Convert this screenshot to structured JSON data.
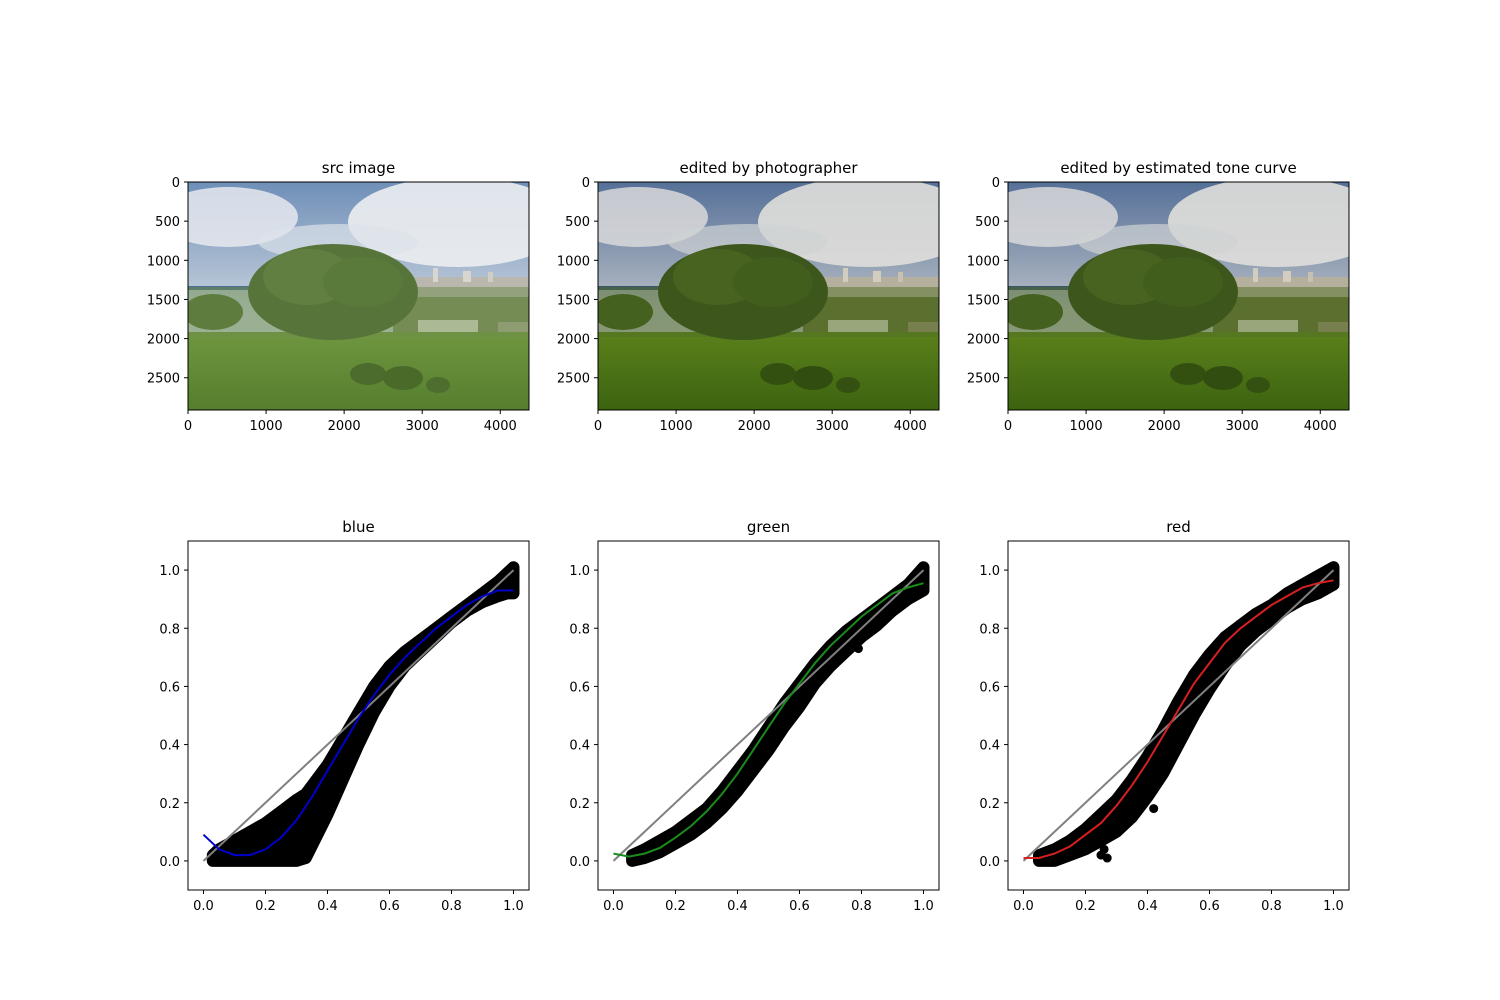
{
  "chart_data": [
    {
      "type": "image",
      "title": "src image",
      "xlim": [
        0,
        4368
      ],
      "ylim": [
        2912,
        0
      ],
      "xticks": [
        0,
        1000,
        2000,
        3000,
        4000
      ],
      "yticks": [
        0,
        500,
        1000,
        1500,
        2000,
        2500
      ],
      "xtick_labels": [
        "0",
        "1000",
        "2000",
        "3000",
        "4000"
      ],
      "ytick_labels": [
        "0",
        "500",
        "1000",
        "1500",
        "2000",
        "2500"
      ],
      "tone": "original"
    },
    {
      "type": "image",
      "title": "edited by photographer",
      "xlim": [
        0,
        4368
      ],
      "ylim": [
        2912,
        0
      ],
      "xticks": [
        0,
        1000,
        2000,
        3000,
        4000
      ],
      "yticks": [
        0,
        500,
        1000,
        1500,
        2000,
        2500
      ],
      "xtick_labels": [
        "0",
        "1000",
        "2000",
        "3000",
        "4000"
      ],
      "ytick_labels": [
        "0",
        "500",
        "1000",
        "1500",
        "2000",
        "2500"
      ],
      "tone": "edited"
    },
    {
      "type": "image",
      "title": "edited by estimated tone curve",
      "xlim": [
        0,
        4368
      ],
      "ylim": [
        2912,
        0
      ],
      "xticks": [
        0,
        1000,
        2000,
        3000,
        4000
      ],
      "yticks": [
        0,
        500,
        1000,
        1500,
        2000,
        2500
      ],
      "xtick_labels": [
        "0",
        "1000",
        "2000",
        "3000",
        "4000"
      ],
      "ytick_labels": [
        "0",
        "500",
        "1000",
        "1500",
        "2000",
        "2500"
      ],
      "tone": "edited"
    },
    {
      "type": "scatter",
      "title": "blue",
      "xlim": [
        -0.05,
        1.05
      ],
      "ylim": [
        -0.1,
        1.1
      ],
      "xticks": [
        0,
        0.2,
        0.4,
        0.6,
        0.8,
        1.0
      ],
      "yticks": [
        0,
        0.2,
        0.4,
        0.6,
        0.8,
        1.0
      ],
      "xtick_labels": [
        "0.0",
        "0.2",
        "0.4",
        "0.6",
        "0.8",
        "1.0"
      ],
      "ytick_labels": [
        "0.0",
        "0.2",
        "0.4",
        "0.6",
        "0.8",
        "1.0"
      ],
      "curve_color": "#0000cc",
      "identity": {
        "x": [
          0,
          1
        ],
        "y": [
          0,
          1
        ],
        "color": "#808080"
      },
      "scatter_band": {
        "x": [
          0.03,
          0.05,
          0.1,
          0.15,
          0.2,
          0.25,
          0.3,
          0.33,
          0.4,
          0.45,
          0.5,
          0.55,
          0.6,
          0.65,
          0.7,
          0.75,
          0.8,
          0.85,
          0.9,
          0.95,
          0.98,
          1.0
        ],
        "upper": [
          0.02,
          0.04,
          0.07,
          0.1,
          0.13,
          0.17,
          0.21,
          0.23,
          0.33,
          0.42,
          0.51,
          0.6,
          0.67,
          0.72,
          0.76,
          0.8,
          0.84,
          0.88,
          0.92,
          0.96,
          0.99,
          1.01
        ],
        "lower": [
          0.0,
          0.0,
          0.0,
          0.0,
          0.0,
          0.0,
          0.0,
          0.01,
          0.16,
          0.28,
          0.4,
          0.51,
          0.6,
          0.67,
          0.72,
          0.77,
          0.82,
          0.86,
          0.89,
          0.91,
          0.92,
          0.92
        ]
      },
      "fit_curve": {
        "x": [
          0.0,
          0.05,
          0.1,
          0.15,
          0.2,
          0.25,
          0.3,
          0.35,
          0.4,
          0.45,
          0.5,
          0.55,
          0.6,
          0.65,
          0.7,
          0.75,
          0.8,
          0.85,
          0.9,
          0.95,
          1.0
        ],
        "y": [
          0.09,
          0.04,
          0.02,
          0.02,
          0.04,
          0.08,
          0.14,
          0.22,
          0.31,
          0.4,
          0.49,
          0.57,
          0.64,
          0.7,
          0.75,
          0.8,
          0.84,
          0.88,
          0.91,
          0.93,
          0.93
        ]
      },
      "outliers": {
        "x": [],
        "y": []
      }
    },
    {
      "type": "scatter",
      "title": "green",
      "xlim": [
        -0.05,
        1.05
      ],
      "ylim": [
        -0.1,
        1.1
      ],
      "xticks": [
        0,
        0.2,
        0.4,
        0.6,
        0.8,
        1.0
      ],
      "yticks": [
        0,
        0.2,
        0.4,
        0.6,
        0.8,
        1.0
      ],
      "xtick_labels": [
        "0.0",
        "0.2",
        "0.4",
        "0.6",
        "0.8",
        "1.0"
      ],
      "ytick_labels": [
        "0.0",
        "0.2",
        "0.4",
        "0.6",
        "0.8",
        "1.0"
      ],
      "curve_color": "#1a8c1a",
      "identity": {
        "x": [
          0,
          1
        ],
        "y": [
          0,
          1
        ],
        "color": "#808080"
      },
      "scatter_band": {
        "x": [
          0.06,
          0.1,
          0.15,
          0.2,
          0.25,
          0.3,
          0.35,
          0.4,
          0.45,
          0.5,
          0.55,
          0.6,
          0.65,
          0.7,
          0.75,
          0.8,
          0.85,
          0.9,
          0.95,
          1.0
        ],
        "upper": [
          0.02,
          0.04,
          0.07,
          0.1,
          0.14,
          0.18,
          0.24,
          0.31,
          0.38,
          0.46,
          0.54,
          0.61,
          0.68,
          0.74,
          0.79,
          0.83,
          0.87,
          0.91,
          0.95,
          1.01
        ],
        "lower": [
          0.0,
          0.01,
          0.03,
          0.06,
          0.09,
          0.13,
          0.18,
          0.24,
          0.31,
          0.38,
          0.46,
          0.53,
          0.61,
          0.67,
          0.72,
          0.77,
          0.81,
          0.86,
          0.9,
          0.93
        ]
      },
      "fit_curve": {
        "x": [
          0.0,
          0.05,
          0.1,
          0.15,
          0.2,
          0.25,
          0.3,
          0.35,
          0.4,
          0.45,
          0.5,
          0.55,
          0.6,
          0.65,
          0.7,
          0.75,
          0.8,
          0.85,
          0.9,
          0.95,
          1.0
        ],
        "y": [
          0.025,
          0.015,
          0.025,
          0.045,
          0.08,
          0.12,
          0.17,
          0.23,
          0.3,
          0.38,
          0.46,
          0.54,
          0.61,
          0.68,
          0.74,
          0.79,
          0.84,
          0.88,
          0.92,
          0.94,
          0.955
        ]
      },
      "outliers": {
        "x": [
          0.79
        ],
        "y": [
          0.73
        ]
      }
    },
    {
      "type": "scatter",
      "title": "red",
      "xlim": [
        -0.05,
        1.05
      ],
      "ylim": [
        -0.1,
        1.1
      ],
      "xticks": [
        0,
        0.2,
        0.4,
        0.6,
        0.8,
        1.0
      ],
      "yticks": [
        0,
        0.2,
        0.4,
        0.6,
        0.8,
        1.0
      ],
      "xtick_labels": [
        "0.0",
        "0.2",
        "0.4",
        "0.6",
        "0.8",
        "1.0"
      ],
      "ytick_labels": [
        "0.0",
        "0.2",
        "0.4",
        "0.6",
        "0.8",
        "1.0"
      ],
      "curve_color": "#d62020",
      "identity": {
        "x": [
          0,
          1
        ],
        "y": [
          0,
          1
        ],
        "color": "#808080"
      },
      "scatter_band": {
        "x": [
          0.05,
          0.1,
          0.15,
          0.2,
          0.25,
          0.3,
          0.35,
          0.4,
          0.45,
          0.5,
          0.55,
          0.6,
          0.65,
          0.7,
          0.75,
          0.8,
          0.85,
          0.9,
          0.95,
          1.0
        ],
        "upper": [
          0.02,
          0.04,
          0.07,
          0.11,
          0.16,
          0.21,
          0.28,
          0.36,
          0.45,
          0.55,
          0.64,
          0.71,
          0.77,
          0.81,
          0.85,
          0.88,
          0.92,
          0.95,
          0.98,
          1.01
        ],
        "lower": [
          0.0,
          0.0,
          0.02,
          0.04,
          0.07,
          0.1,
          0.15,
          0.22,
          0.3,
          0.4,
          0.5,
          0.59,
          0.67,
          0.74,
          0.79,
          0.83,
          0.87,
          0.9,
          0.92,
          0.95
        ]
      },
      "fit_curve": {
        "x": [
          0.0,
          0.05,
          0.1,
          0.15,
          0.2,
          0.25,
          0.3,
          0.35,
          0.4,
          0.45,
          0.5,
          0.55,
          0.6,
          0.65,
          0.7,
          0.75,
          0.8,
          0.85,
          0.9,
          0.95,
          1.0
        ],
        "y": [
          0.01,
          0.01,
          0.025,
          0.05,
          0.09,
          0.13,
          0.19,
          0.26,
          0.34,
          0.43,
          0.52,
          0.61,
          0.68,
          0.75,
          0.8,
          0.84,
          0.88,
          0.91,
          0.94,
          0.955,
          0.965
        ]
      },
      "outliers": {
        "x": [
          0.42,
          0.25,
          0.27,
          0.26,
          0.24
        ],
        "y": [
          0.18,
          0.02,
          0.01,
          0.04,
          0.06
        ]
      }
    }
  ]
}
